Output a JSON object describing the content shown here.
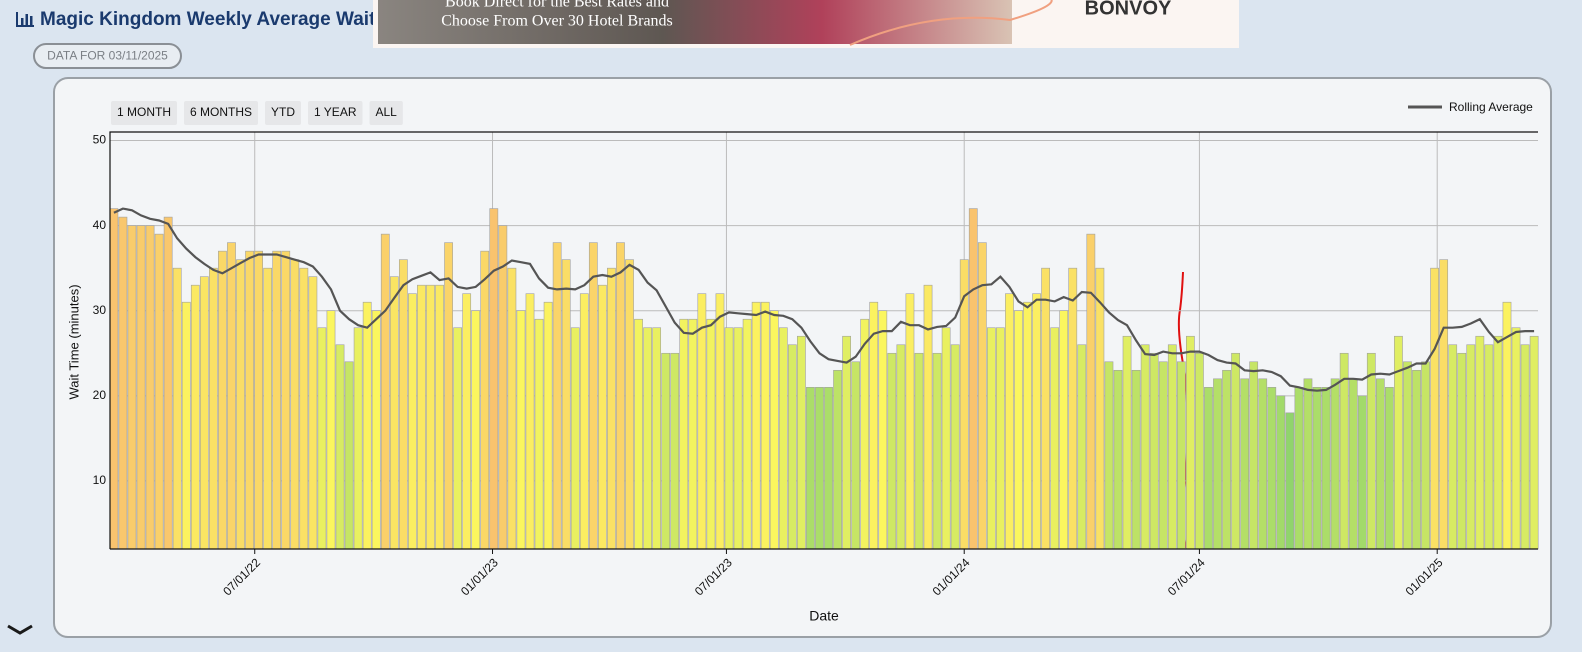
{
  "header": {
    "title": "Magic Kingdom Weekly Average Wait",
    "badge": "DATA FOR 03/11/2025"
  },
  "ad": {
    "lines": [
      "Book Direct for the Best Rates and",
      "Choose From Over 30 Hotel Brands"
    ],
    "brand": "BONVOY"
  },
  "range_buttons": [
    "1 MONTH",
    "6 MONTHS",
    "YTD",
    "1 YEAR",
    "ALL"
  ],
  "chart_data": {
    "type": "bar",
    "x_label": "Date",
    "y_label": "Wait Time (minutes)",
    "x": [
      "03/14/22",
      "03/21/22",
      "03/28/22",
      "04/04/22",
      "04/11/22",
      "04/18/22",
      "04/25/22",
      "05/02/22",
      "05/09/22",
      "05/16/22",
      "05/23/22",
      "05/30/22",
      "06/06/22",
      "06/13/22",
      "06/20/22",
      "06/27/22",
      "07/04/22",
      "07/11/22",
      "07/18/22",
      "07/25/22",
      "08/01/22",
      "08/08/22",
      "08/15/22",
      "08/22/22",
      "08/29/22",
      "09/05/22",
      "09/12/22",
      "09/19/22",
      "09/26/22",
      "10/03/22",
      "10/10/22",
      "10/17/22",
      "10/24/22",
      "10/31/22",
      "11/07/22",
      "11/14/22",
      "11/21/22",
      "11/28/22",
      "12/05/22",
      "12/12/22",
      "12/19/22",
      "12/26/22",
      "01/02/23",
      "01/09/23",
      "01/16/23",
      "01/23/23",
      "01/30/23",
      "02/06/23",
      "02/13/23",
      "02/20/23",
      "02/27/23",
      "03/06/23",
      "03/13/23",
      "03/20/23",
      "03/27/23",
      "04/03/23",
      "04/10/23",
      "04/17/23",
      "04/24/23",
      "05/01/23",
      "05/08/23",
      "05/15/23",
      "05/22/23",
      "05/29/23",
      "06/05/23",
      "06/12/23",
      "06/19/23",
      "06/26/23",
      "07/03/23",
      "07/10/23",
      "07/17/23",
      "07/24/23",
      "07/31/23",
      "08/07/23",
      "08/14/23",
      "08/21/23",
      "08/28/23",
      "09/04/23",
      "09/11/23",
      "09/18/23",
      "09/25/23",
      "10/02/23",
      "10/09/23",
      "10/16/23",
      "10/23/23",
      "10/30/23",
      "11/06/23",
      "11/13/23",
      "11/20/23",
      "11/27/23",
      "12/04/23",
      "12/11/23",
      "12/18/23",
      "12/25/23",
      "01/01/24",
      "01/08/24",
      "01/15/24",
      "01/22/24",
      "01/29/24",
      "02/05/24",
      "02/12/24",
      "02/19/24",
      "02/26/24",
      "03/04/24",
      "03/11/24",
      "03/18/24",
      "03/25/24",
      "04/01/24",
      "04/08/24",
      "04/15/24",
      "04/22/24",
      "04/29/24",
      "05/06/24",
      "05/13/24",
      "05/20/24",
      "05/27/24",
      "06/03/24",
      "06/10/24",
      "06/17/24",
      "06/24/24",
      "07/01/24",
      "07/08/24",
      "07/15/24",
      "07/22/24",
      "07/29/24",
      "08/05/24",
      "08/12/24",
      "08/19/24",
      "08/26/24",
      "09/02/24",
      "09/09/24",
      "09/16/24",
      "09/23/24",
      "09/30/24",
      "10/07/24",
      "10/14/24",
      "10/21/24",
      "10/28/24",
      "11/04/24",
      "11/11/24",
      "11/18/24",
      "11/25/24",
      "12/02/24",
      "12/09/24",
      "12/16/24",
      "12/23/24",
      "12/30/24",
      "01/06/25",
      "01/13/25",
      "01/20/25",
      "01/27/25",
      "02/03/25",
      "02/10/25",
      "02/17/25",
      "02/24/25",
      "03/03/25",
      "03/10/25",
      "03/17/25"
    ],
    "series": [
      {
        "type": "bar",
        "color_scale": [
          "#90d46c",
          "#fbf65e",
          "#f9c36e"
        ],
        "values": [
          42,
          41,
          40,
          40,
          40,
          39,
          41,
          35,
          31,
          33,
          34,
          35,
          37,
          38,
          36,
          37,
          37,
          35,
          37,
          37,
          36,
          35,
          34,
          28,
          30,
          26,
          24,
          28,
          31,
          30,
          39,
          34,
          36,
          32,
          33,
          33,
          33,
          38,
          28,
          32,
          30,
          37,
          42,
          40,
          35,
          30,
          32,
          29,
          31,
          38,
          36,
          28,
          32,
          38,
          33,
          35,
          38,
          36,
          29,
          28,
          28,
          25,
          25,
          29,
          29,
          32,
          29,
          32,
          28,
          28,
          29,
          31,
          31,
          30,
          28,
          26,
          27,
          21,
          21,
          21,
          23,
          27,
          24,
          29,
          31,
          30,
          25,
          26,
          32,
          25,
          33,
          25,
          28,
          26,
          36,
          42,
          38,
          28,
          28,
          32,
          30,
          31,
          32,
          35,
          28,
          30,
          35,
          26,
          39,
          35,
          24,
          23,
          27,
          23,
          26,
          25,
          24,
          26,
          24,
          27,
          25,
          21,
          22,
          23,
          25,
          22,
          24,
          22,
          21,
          20,
          18,
          21,
          22,
          21,
          21,
          22,
          25,
          22,
          20,
          25,
          22,
          21,
          27,
          24,
          23,
          24,
          35,
          36,
          26,
          25,
          26,
          27,
          26,
          27,
          31,
          28,
          26,
          27
        ]
      },
      {
        "type": "line",
        "name": "Rolling Average",
        "color": "#555555",
        "values": [
          41.5,
          42,
          41.8,
          41.2,
          40.8,
          40.6,
          40.2,
          38.5,
          37.3,
          36.3,
          35.5,
          34.8,
          34.4,
          35,
          35.6,
          36.2,
          36.6,
          36.6,
          36.6,
          36.3,
          36,
          35.7,
          35.2,
          34,
          32.5,
          30,
          29,
          28.3,
          28,
          29,
          30,
          31.5,
          33,
          33.7,
          34.1,
          34.5,
          33.6,
          33.8,
          32.8,
          32.6,
          32.8,
          33.7,
          34.7,
          35.2,
          35.9,
          35.7,
          35.5,
          33.8,
          32.7,
          32.5,
          32.6,
          32.5,
          33,
          34,
          34.2,
          34,
          34.5,
          35.4,
          34.8,
          33.3,
          32.4,
          30.5,
          28.6,
          27.4,
          27.3,
          28,
          28.3,
          29.3,
          29.8,
          29.7,
          29.6,
          29.5,
          29.9,
          29.5,
          29.4,
          29,
          28,
          26.4,
          25,
          24.3,
          24.1,
          23.9,
          24.6,
          26.1,
          27.3,
          27.6,
          27.6,
          28.7,
          28.3,
          28.3,
          27.8,
          28.1,
          28.2,
          29.2,
          31.7,
          32.5,
          33,
          33.1,
          34,
          32.8,
          31.1,
          30.4,
          31.3,
          31.3,
          31.1,
          31.6,
          31.2,
          32.2,
          32.1,
          31,
          29.8,
          28.9,
          28.3,
          26.5,
          24.9,
          24.8,
          25.2,
          25,
          25,
          25.2,
          25.2,
          24.8,
          24.2,
          23.9,
          23.8,
          23,
          22.9,
          23,
          22.8,
          22.3,
          21.2,
          21,
          20.7,
          20.6,
          20.7,
          21.3,
          22,
          22,
          21.9,
          22.5,
          22.6,
          22.5,
          22.9,
          23.3,
          23.8,
          23.8,
          25.5,
          28,
          28,
          28.1,
          28.5,
          29,
          27.5,
          26.3,
          26.9,
          27.5,
          27.6,
          27.6
        ]
      }
    ],
    "xlim": [
      "03/11/22",
      "03/20/25"
    ],
    "xticks": [
      "07/01/22",
      "01/01/23",
      "07/01/23",
      "01/01/24",
      "07/01/24",
      "01/01/25"
    ],
    "ylim": [
      2,
      51
    ],
    "yticks": [
      10,
      20,
      30,
      40,
      50
    ],
    "grid": true,
    "legend": "top-right"
  }
}
